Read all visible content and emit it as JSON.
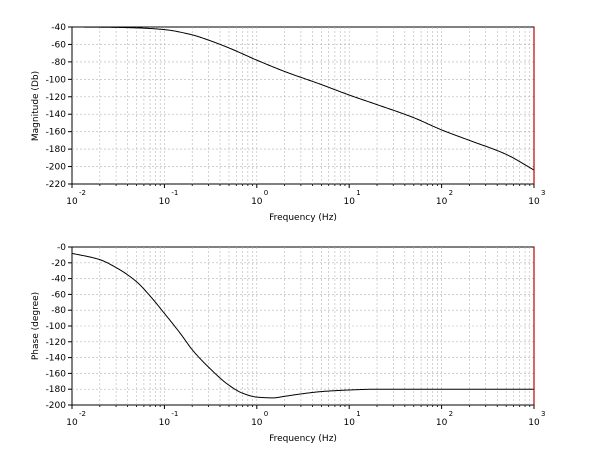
{
  "chart_data": [
    {
      "type": "line",
      "title": "",
      "xlabel": "Frequency (Hz)",
      "ylabel": "Magnitude (Db)",
      "xscale": "log",
      "xlim": [
        0.01,
        1000
      ],
      "ylim": [
        -220,
        -40
      ],
      "grid": "dashed, log-x",
      "x_tick_labels": [
        {
          "base": "10",
          "exp": "-2"
        },
        {
          "base": "10",
          "exp": "-1"
        },
        {
          "base": "10",
          "exp": "0"
        },
        {
          "base": "10",
          "exp": "1"
        },
        {
          "base": "10",
          "exp": "2"
        },
        {
          "base": "10",
          "exp": "3"
        }
      ],
      "y_tick_labels": [
        "-40",
        "-60",
        "-80",
        "-100",
        "-120",
        "-140",
        "-160",
        "-180",
        "-200",
        "-220"
      ],
      "series": [
        {
          "color": "#000000",
          "x": [
            0.01,
            0.02,
            0.05,
            0.1,
            0.2,
            0.3,
            0.5,
            1,
            2,
            5,
            10,
            20,
            50,
            100,
            200,
            500,
            1000
          ],
          "y": [
            -40,
            -40.2,
            -41,
            -43,
            -49,
            -55,
            -64,
            -78,
            -91,
            -106,
            -118,
            -129,
            -144,
            -158,
            -170,
            -186,
            -204
          ]
        }
      ],
      "marker_line": {
        "x": 1000,
        "color": "#c00000"
      }
    },
    {
      "type": "line",
      "title": "",
      "xlabel": "Frequency (Hz)",
      "ylabel": "Phase (degree)",
      "xscale": "log",
      "xlim": [
        0.01,
        1000
      ],
      "ylim": [
        -200,
        0
      ],
      "grid": "dashed, log-x",
      "x_tick_labels": [
        {
          "base": "10",
          "exp": "-2"
        },
        {
          "base": "10",
          "exp": "-1"
        },
        {
          "base": "10",
          "exp": "0"
        },
        {
          "base": "10",
          "exp": "1"
        },
        {
          "base": "10",
          "exp": "2"
        },
        {
          "base": "10",
          "exp": "3"
        }
      ],
      "y_tick_labels": [
        "-0",
        "-20",
        "-40",
        "-60",
        "-80",
        "-100",
        "-120",
        "-140",
        "-160",
        "-180",
        "-200"
      ],
      "series": [
        {
          "color": "#000000",
          "x": [
            0.01,
            0.02,
            0.03,
            0.05,
            0.07,
            0.1,
            0.15,
            0.2,
            0.3,
            0.5,
            0.7,
            1,
            1.5,
            2,
            3,
            5,
            10,
            20,
            50,
            100,
            1000
          ],
          "y": [
            -8,
            -16,
            -26,
            -44,
            -62,
            -84,
            -110,
            -130,
            -152,
            -175,
            -185,
            -190,
            -191,
            -189,
            -186,
            -183,
            -181,
            -180,
            -180,
            -180,
            -180
          ]
        }
      ],
      "marker_line": {
        "x": 1000,
        "color": "#c00000"
      }
    }
  ]
}
